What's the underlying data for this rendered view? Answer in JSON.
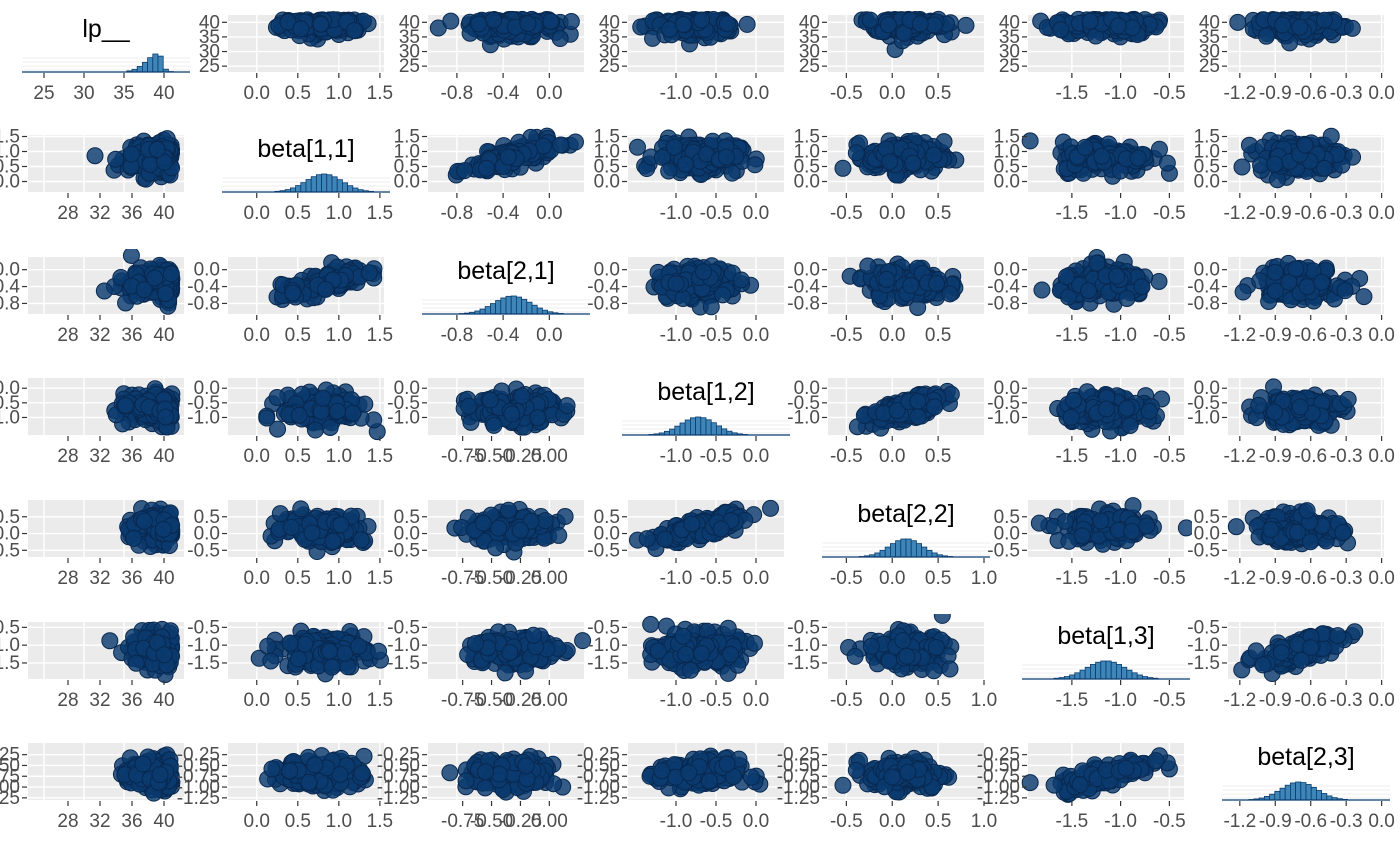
{
  "chart_data": {
    "type": "scatter-matrix",
    "variables": [
      "lp__",
      "beta[1,1]",
      "beta[2,1]",
      "beta[1,2]",
      "beta[2,2]",
      "beta[1,3]",
      "beta[2,3]"
    ],
    "ranges": {
      "lp__": [
        23,
        42.5
      ],
      "beta[1,1]": [
        -0.35,
        1.55
      ],
      "beta[2,1]": [
        -1.05,
        0.3
      ],
      "beta[1,2]": [
        -1.6,
        0.35
      ],
      "beta[2,2]": [
        -0.7,
        1.0
      ],
      "beta[1,3]": [
        -1.95,
        -0.35
      ],
      "beta[2,3]": [
        -1.3,
        0.02
      ]
    },
    "x_ticks": [
      [
        "25",
        "30",
        "35",
        "40"
      ],
      [
        "0.0",
        "0.5",
        "1.0",
        "1.5"
      ],
      [
        "-0.8",
        "-0.4",
        "0.0"
      ],
      [
        "-1.0",
        "-0.5",
        "0.0"
      ],
      [
        "-0.5",
        "0.0",
        "0.5"
      ],
      [
        "-1.5",
        "-1.0",
        "-0.5"
      ],
      [
        "-1.2",
        "-0.9",
        "-0.6",
        "-0.3",
        "0.0"
      ]
    ],
    "x_ticks_alt": {
      "lp__": [
        "28",
        "32",
        "36",
        "40"
      ],
      "beta[2,1]": [
        "-0.75",
        "-0.50",
        "-0.25",
        "0.00"
      ],
      "beta[2,2]": [
        "-0.5",
        "0.0",
        "0.5",
        "1.0"
      ]
    },
    "y_ticks": [
      [
        "25",
        "30",
        "35",
        "40"
      ],
      [
        "0.0",
        "0.5",
        "1.0",
        "1.5"
      ],
      [
        "-0.75",
        "-0.50",
        "-0.25",
        "0.00"
      ],
      [
        "-1.5",
        "-1.0",
        "-0.5",
        "0.0"
      ],
      [
        "-0.5",
        "0.0",
        "0.5",
        "1.0"
      ],
      [
        "-1.5",
        "-1.0",
        "-0.5"
      ],
      [
        "-1.25",
        "-1.00",
        "-0.75",
        "-0.50",
        "-0.25"
      ]
    ],
    "y_ticks_row": {
      "beta[2,1]": [
        "-0.8",
        "-0.4",
        "0.0"
      ],
      "beta[1,2]": [
        "-1.0",
        "-0.5",
        "0.0"
      ],
      "beta[2,2]": [
        "-0.5",
        "0.0",
        "0.5"
      ]
    },
    "histograms": [
      {
        "name": "lp__",
        "mean": 39.5,
        "sd": 1.6
      },
      {
        "name": "beta[1,1]",
        "mean": 0.82,
        "sd": 0.22
      },
      {
        "name": "beta[2,1]",
        "mean": -0.32,
        "sd": 0.16
      },
      {
        "name": "beta[1,2]",
        "mean": -0.72,
        "sd": 0.22
      },
      {
        "name": "beta[2,2]",
        "mean": 0.15,
        "sd": 0.18
      },
      {
        "name": "beta[1,3]",
        "mean": -1.15,
        "sd": 0.2
      },
      {
        "name": "beta[2,3]",
        "mean": -0.7,
        "sd": 0.15
      }
    ],
    "correlations": {
      "beta[1,1]|beta[2,1]": 0.75,
      "beta[1,2]|beta[2,2]": 0.75,
      "beta[1,3]|beta[2,3]": 0.75,
      "beta[1,3]|beta[1,2]": 0.0
    },
    "colors": {
      "point_fill": "#0b3b6f",
      "point_edge": "#08284f",
      "hist_fill": "#3e86b8",
      "hist_edge": "#0b3b6f",
      "panel_bg": "#ebebeb",
      "grid": "#ffffff",
      "tick_text": "#4d4d4d"
    },
    "grid": true
  }
}
